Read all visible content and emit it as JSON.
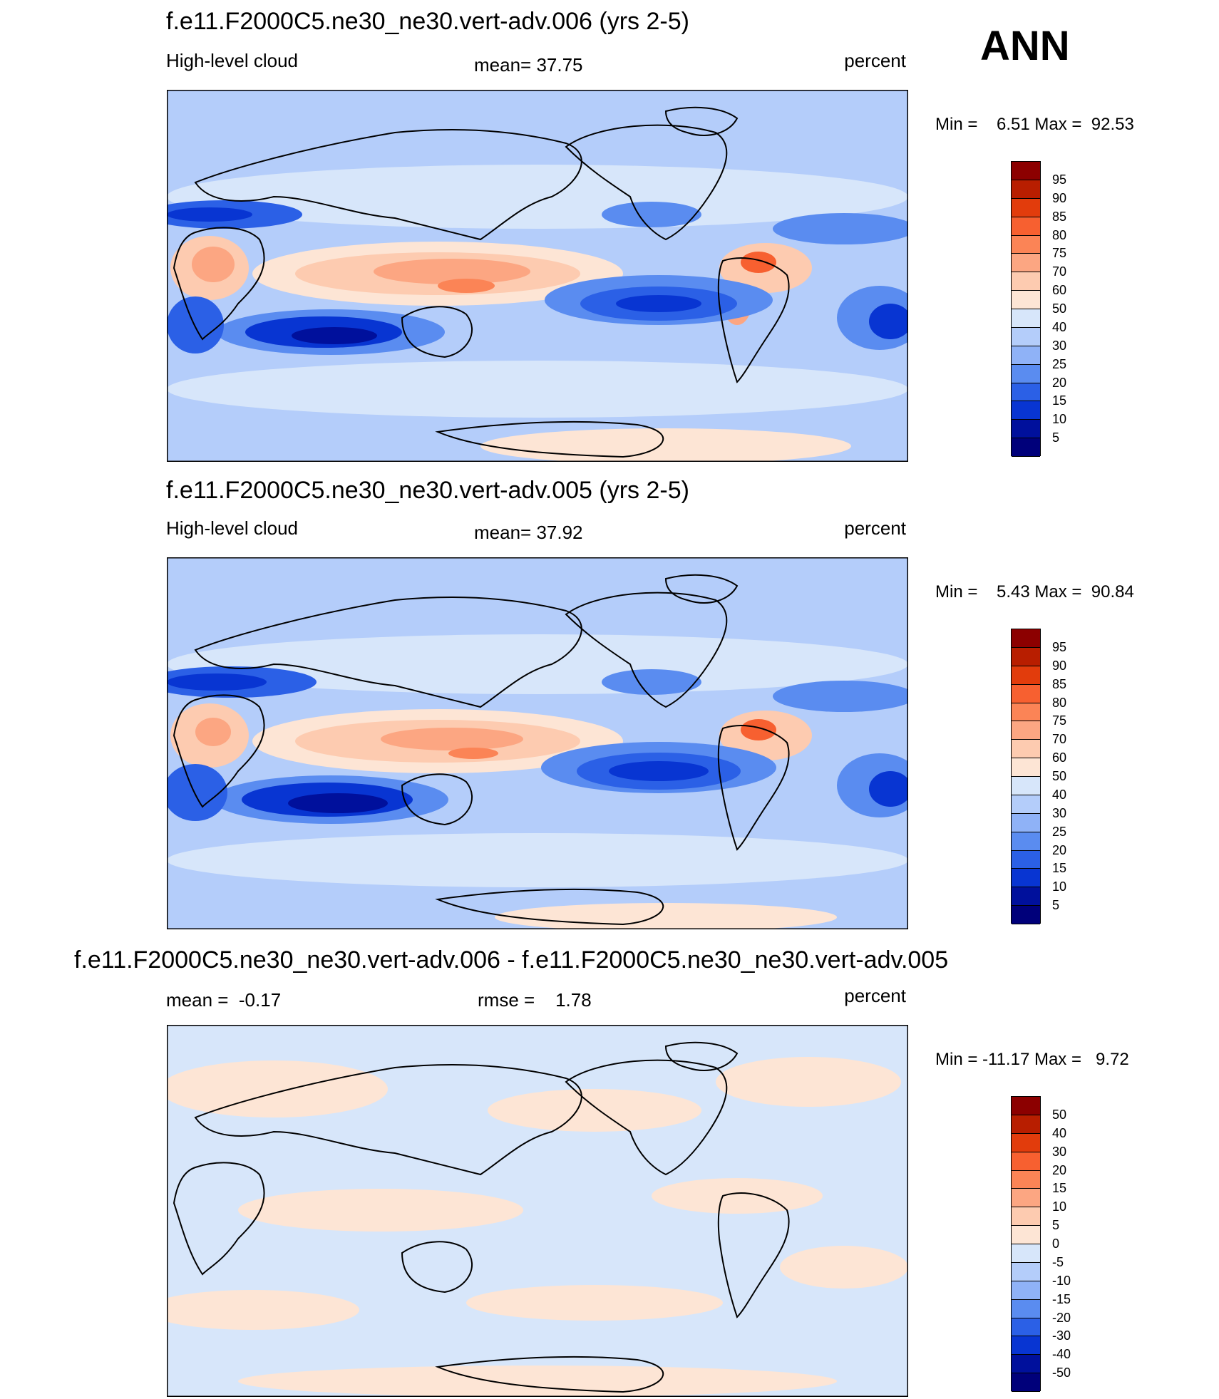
{
  "season": "ANN",
  "panels": [
    {
      "title": "f.e11.F2000C5.ne30_ne30.vert-adv.006 (yrs 2-5)",
      "left_text": "High-level cloud",
      "center_text": "mean=  37.75",
      "right_text": "percent",
      "minmax": "Min =    6.51 Max =  92.53",
      "colorbar_labels": [
        "95",
        "90",
        "85",
        "80",
        "75",
        "70",
        "60",
        "50",
        "40",
        "30",
        "25",
        "20",
        "15",
        "10",
        "5"
      ]
    },
    {
      "title": "f.e11.F2000C5.ne30_ne30.vert-adv.005 (yrs 2-5)",
      "left_text": "High-level cloud",
      "center_text": "mean=  37.92",
      "right_text": "percent",
      "minmax": "Min =    5.43 Max =  90.84",
      "colorbar_labels": [
        "95",
        "90",
        "85",
        "80",
        "75",
        "70",
        "60",
        "50",
        "40",
        "30",
        "25",
        "20",
        "15",
        "10",
        "5"
      ]
    },
    {
      "title": "f.e11.F2000C5.ne30_ne30.vert-adv.006 - f.e11.F2000C5.ne30_ne30.vert-adv.005",
      "left_text": "mean =  -0.17",
      "center_text": "rmse =    1.78",
      "right_text": "percent",
      "minmax": "Min = -11.17 Max =   9.72",
      "colorbar_labels": [
        "50",
        "40",
        "30",
        "20",
        "15",
        "10",
        "5",
        "0",
        "-5",
        "-10",
        "-15",
        "-20",
        "-30",
        "-40",
        "-50"
      ]
    }
  ],
  "colors": {
    "scale": [
      "#8c0000",
      "#b81e00",
      "#e23c0c",
      "#f76030",
      "#fb8456",
      "#fca682",
      "#fdcbb0",
      "#fde5d5",
      "#d7e6fa",
      "#b4cdfa",
      "#8fb2f7",
      "#5a8cf0",
      "#2b60e6",
      "#0835d2",
      "#00109c",
      "#00007a"
    ],
    "land_outline": "#000000"
  }
}
